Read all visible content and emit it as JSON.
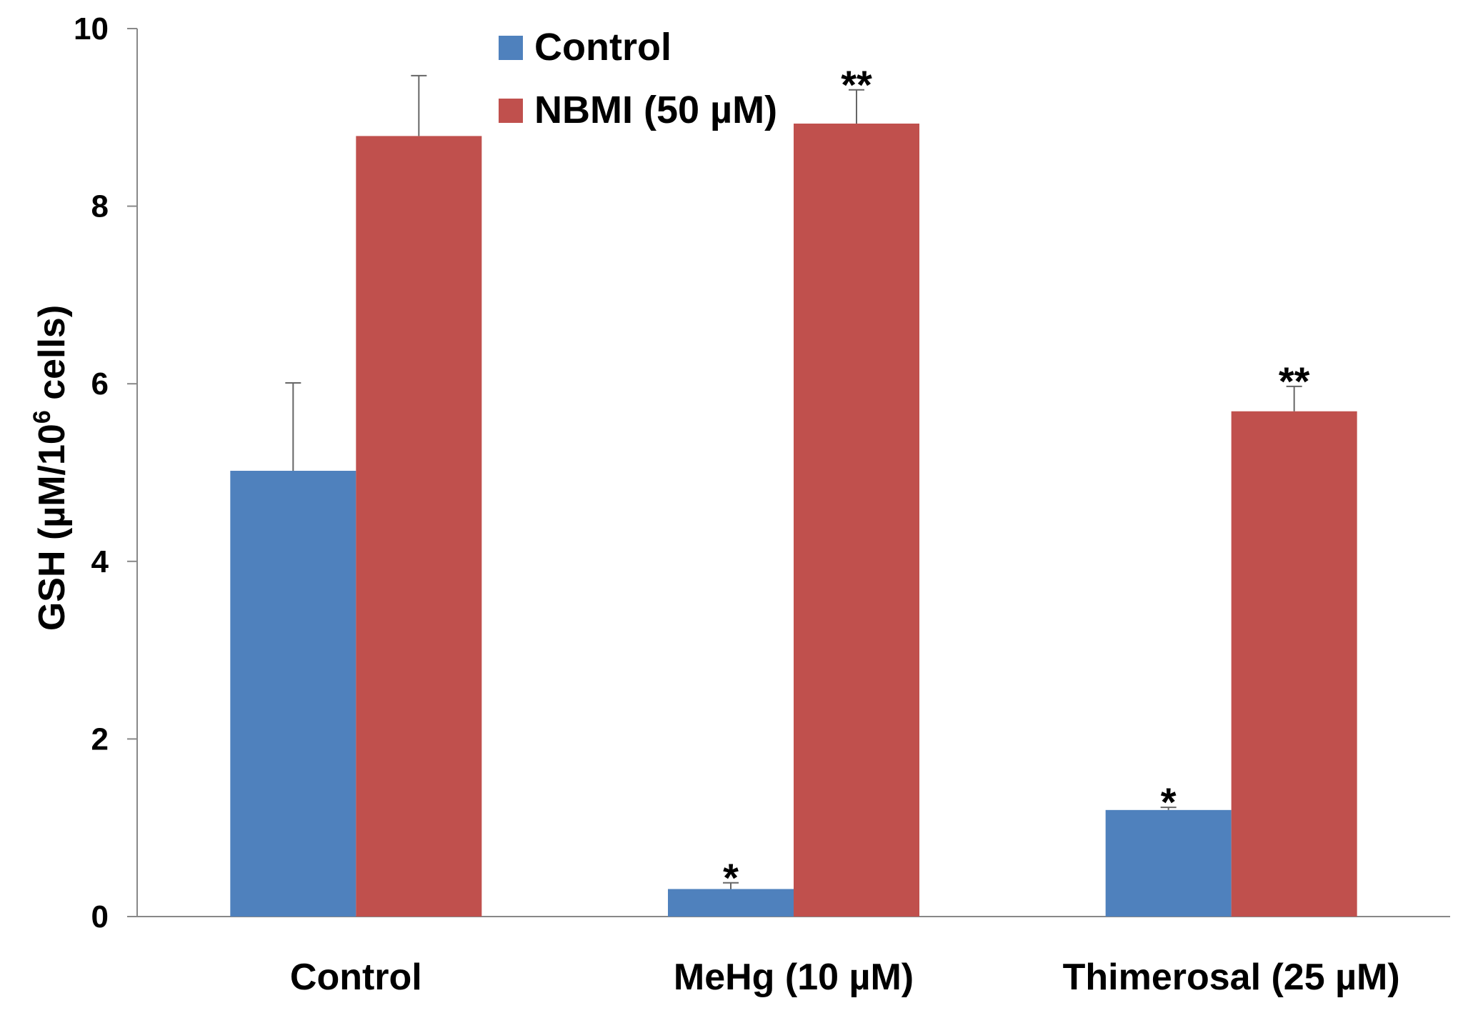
{
  "chart_data": {
    "type": "bar",
    "title": "",
    "xlabel": "",
    "ylabel_main": "GSH (µM/10",
    "ylabel_sup": "6",
    "ylabel_tail": " cells)",
    "ylim": [
      0,
      10
    ],
    "yticks": [
      "0",
      "2",
      "4",
      "6",
      "8",
      "10"
    ],
    "categories": [
      "Control",
      "MeHg (10 µM)",
      "Thimerosal (25 µM)"
    ],
    "legend_position": "top-center",
    "grid": false,
    "series": [
      {
        "name": "Control",
        "color": "#4f81bd",
        "values": [
          5.02,
          0.31,
          1.2
        ],
        "errors": [
          0.99,
          0.07,
          0.03
        ],
        "significance": [
          "",
          "*",
          "*"
        ]
      },
      {
        "name": "NBMI (50 µM)",
        "color": "#c0504d",
        "values": [
          8.79,
          8.93,
          5.69
        ],
        "errors": [
          0.68,
          0.38,
          0.28
        ],
        "significance": [
          "",
          "**",
          "**"
        ]
      }
    ]
  }
}
